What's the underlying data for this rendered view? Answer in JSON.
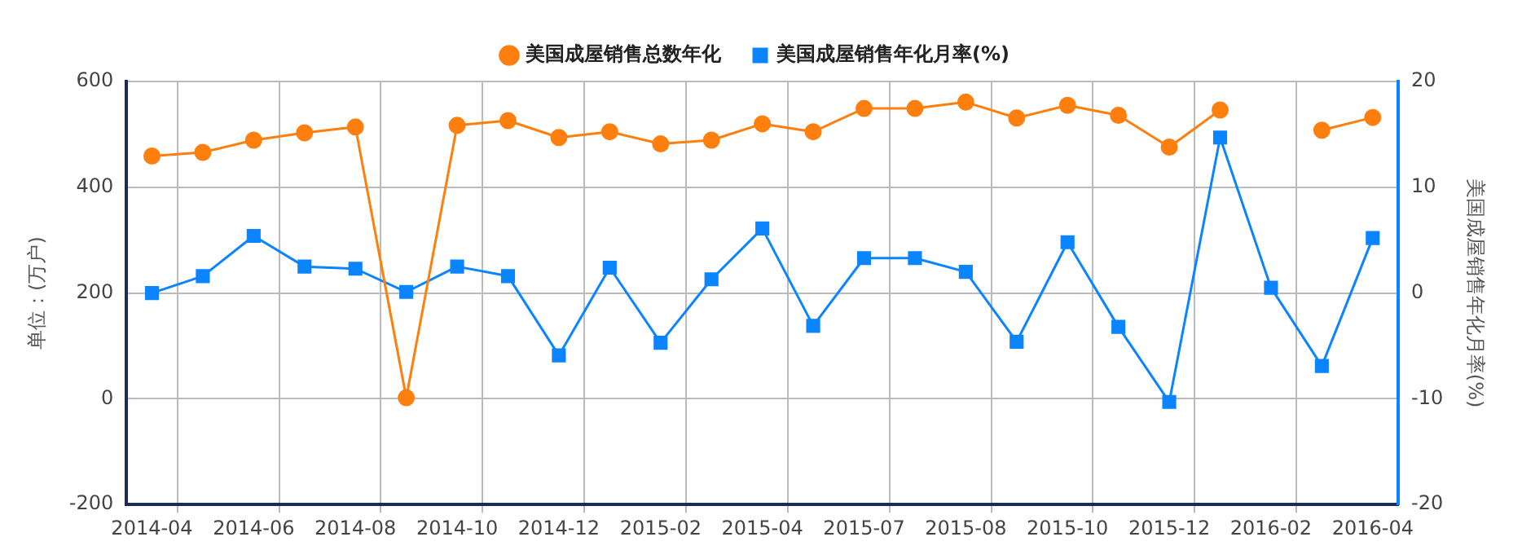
{
  "chart_data": {
    "type": "line",
    "categories": [
      "2014-04",
      null,
      "2014-06",
      null,
      "2014-08",
      null,
      "2014-10",
      null,
      "2014-12",
      null,
      "2015-02",
      null,
      "2015-04",
      null,
      "2015-07",
      null,
      "2015-08",
      null,
      "2015-10",
      null,
      "2015-12",
      null,
      "2016-02",
      null,
      "2016-04"
    ],
    "series": [
      {
        "name": "美国成屋销售总数年化",
        "color": "#ff7f0e",
        "marker": "circle",
        "values": [
          459,
          466,
          489,
          503,
          514,
          2,
          517,
          526,
          494,
          505,
          482,
          489,
          520,
          505,
          549,
          549,
          561,
          531,
          555,
          536,
          476,
          546,
          null,
          508,
          532
        ]
      },
      {
        "name": "美国成屋销售年化月率(%)",
        "color": "#0a84ff",
        "marker": "square",
        "axis": "y2",
        "values": [
          0,
          1.6,
          5.4,
          2.5,
          2.3,
          0.1,
          2.5,
          1.6,
          -5.9,
          2.4,
          -4.7,
          1.3,
          6.1,
          -3.1,
          3.3,
          3.3,
          2.0,
          -4.6,
          4.8,
          -3.2,
          -10.3,
          14.7,
          0.5,
          -6.9,
          5.2
        ]
      }
    ],
    "ylabel": "单位：(万户)",
    "y2label": "美国成屋销售年化月率(%)",
    "ylim": [
      -200,
      600
    ],
    "yticks": [
      -200,
      0,
      200,
      400,
      600
    ],
    "y2lim": [
      -20,
      20
    ],
    "y2ticks": [
      -20,
      -10,
      0,
      10,
      20
    ],
    "grid": true,
    "legend": "top",
    "line_style": "solid"
  }
}
